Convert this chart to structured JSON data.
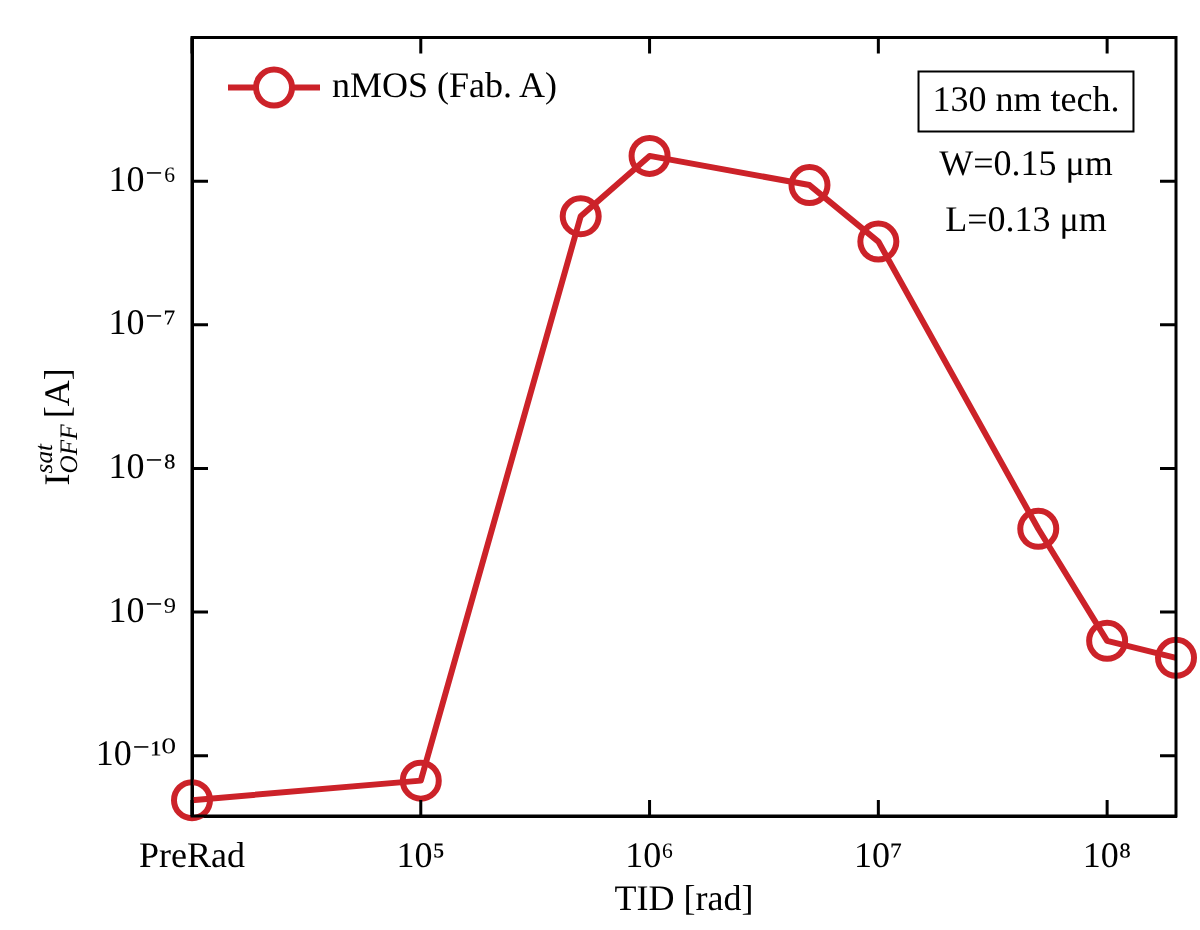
{
  "chart_data": {
    "type": "line",
    "xlabel": "TID [rad]",
    "ylabel": "I$^{sat}$$_{OFF}$ [A]",
    "x": [
      10000,
      100000,
      500000,
      1000000,
      5000000,
      10000000,
      50000000,
      100000000,
      200000000
    ],
    "series": [
      {
        "name": "nMOS (Fab. A)",
        "color": "#cc2229",
        "values": [
          4.9e-11,
          6.7e-11,
          5.7e-07,
          1.5e-06,
          9.4e-07,
          3.8e-07,
          3.8e-09,
          6.3e-10,
          4.8e-10
        ]
      }
    ],
    "log": "xy",
    "xlim": [
      10000,
      200000000
    ],
    "ylim": [
      3.8e-11,
      1e-05
    ],
    "xticks": [
      {
        "value": 10000,
        "label": "PreRad"
      },
      {
        "value": 100000,
        "label": "10⁵"
      },
      {
        "value": 1000000,
        "label": "10⁶"
      },
      {
        "value": 10000000,
        "label": "10⁷"
      },
      {
        "value": 100000000,
        "label": "10⁸"
      }
    ],
    "yticks": [
      {
        "value": 1e-10,
        "label": "10⁻¹⁰"
      },
      {
        "value": 1e-09,
        "label": "10⁻⁹"
      },
      {
        "value": 1e-08,
        "label": "10⁻⁸"
      },
      {
        "value": 1e-07,
        "label": "10⁻⁷"
      },
      {
        "value": 1e-06,
        "label": "10⁻⁶"
      }
    ],
    "annotations": [
      "130 nm tech.",
      "W=0.15 μm",
      "L=0.13 μm"
    ],
    "legend": "top left",
    "marker": "circle",
    "line_style": "solid",
    "grid": false
  }
}
